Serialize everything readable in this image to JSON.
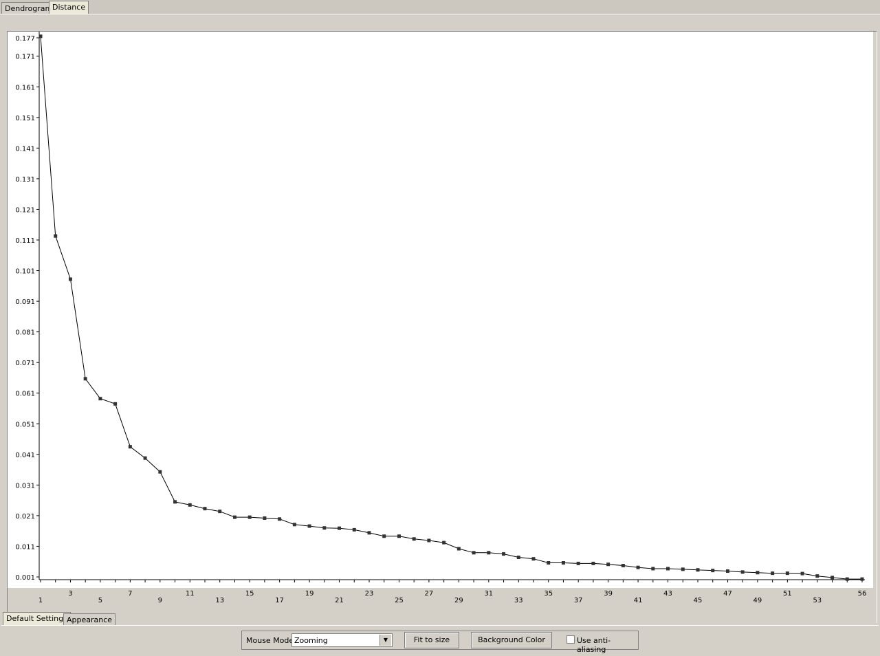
{
  "tabs": {
    "top": [
      "Dendrogram",
      "Distance"
    ],
    "bottom": [
      "Default Settings",
      "Appearance"
    ]
  },
  "controls": {
    "mouse_mode_label": "Mouse Mode",
    "mouse_mode_value": "Zooming",
    "fit_label": "Fit to size",
    "bg_color_label": "Background Color",
    "antialias_label": "Use anti-aliasing"
  },
  "chart_data": {
    "type": "line",
    "title": "",
    "xlabel": "",
    "ylabel": "",
    "grid": false,
    "legend": "none",
    "xlim": [
      1,
      56
    ],
    "ylim": [
      0.001,
      0.177
    ],
    "yticks": [
      "0.177",
      "0.171",
      "0.161",
      "0.151",
      "0.141",
      "0.131",
      "0.121",
      "0.111",
      "0.101",
      "0.091",
      "0.081",
      "0.071",
      "0.061",
      "0.051",
      "0.041",
      "0.031",
      "0.021",
      "0.011",
      "0.001"
    ],
    "ytick_values": [
      0.177,
      0.171,
      0.161,
      0.151,
      0.141,
      0.131,
      0.121,
      0.111,
      0.101,
      0.091,
      0.081,
      0.071,
      0.061,
      0.051,
      0.041,
      0.031,
      0.021,
      0.011,
      0.001
    ],
    "xticks": [
      "1",
      "3",
      "5",
      "7",
      "9",
      "11",
      "13",
      "15",
      "17",
      "19",
      "21",
      "23",
      "25",
      "27",
      "29",
      "31",
      "33",
      "35",
      "37",
      "39",
      "41",
      "43",
      "45",
      "47",
      "49",
      "51",
      "53",
      "56"
    ],
    "x": [
      1,
      2,
      3,
      4,
      5,
      6,
      7,
      8,
      9,
      10,
      11,
      12,
      13,
      14,
      15,
      16,
      17,
      18,
      19,
      20,
      21,
      22,
      23,
      24,
      25,
      26,
      27,
      28,
      29,
      30,
      31,
      32,
      33,
      34,
      35,
      36,
      37,
      38,
      39,
      40,
      41,
      42,
      43,
      44,
      45,
      46,
      47,
      48,
      49,
      50,
      51,
      52,
      53,
      54,
      55,
      56
    ],
    "values": [
      0.1775,
      0.1123,
      0.0982,
      0.0657,
      0.0592,
      0.0575,
      0.0435,
      0.0398,
      0.0353,
      0.0255,
      0.0245,
      0.0233,
      0.0224,
      0.0205,
      0.0205,
      0.0202,
      0.0199,
      0.0181,
      0.0176,
      0.017,
      0.0169,
      0.0164,
      0.0154,
      0.0143,
      0.0143,
      0.0134,
      0.0129,
      0.0122,
      0.0102,
      0.0089,
      0.0089,
      0.0085,
      0.0074,
      0.0069,
      0.0056,
      0.0056,
      0.0054,
      0.0054,
      0.0051,
      0.0047,
      0.0041,
      0.0037,
      0.0037,
      0.0035,
      0.0033,
      0.0031,
      0.0029,
      0.0026,
      0.0024,
      0.0022,
      0.0022,
      0.0021,
      0.0013,
      0.0008,
      0.0003,
      0.0003
    ]
  }
}
